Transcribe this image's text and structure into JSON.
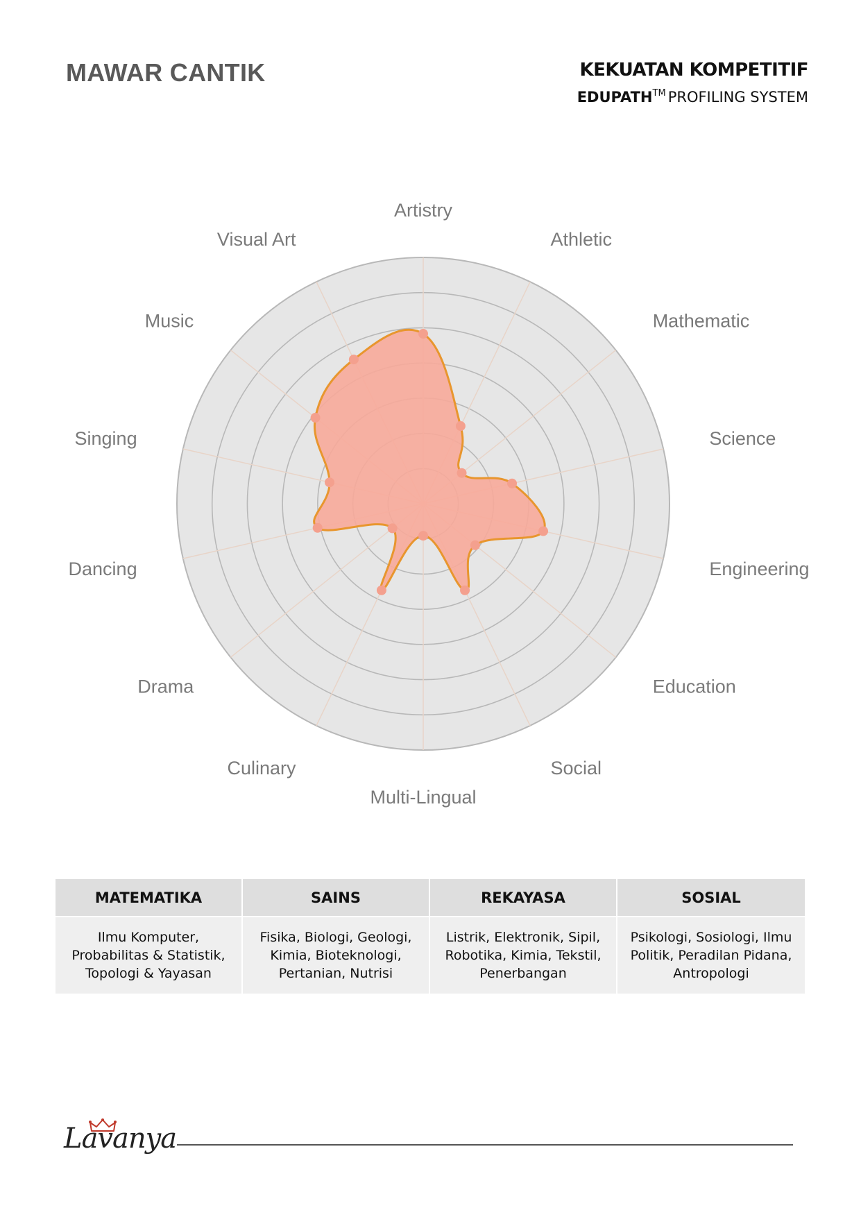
{
  "header": {
    "name": "MAWAR CANTIK",
    "title": "KEKUATAN KOMPETITIF",
    "brand": "EDUPATH",
    "trademark": "TM",
    "subtitle": "PROFILING SYSTEM"
  },
  "chart_data": {
    "type": "radar",
    "categories": [
      "Artistry",
      "Athletic",
      "Mathematic",
      "Science",
      "Engineering",
      "Education",
      "Social",
      "Multi-Lingual",
      "Culinary",
      "Drama",
      "Dancing",
      "Singing",
      "Music",
      "Visual Art"
    ],
    "values": [
      69,
      35,
      20,
      37,
      50,
      27,
      39,
      13,
      39,
      16,
      44,
      39,
      56,
      65
    ],
    "rlim": [
      0,
      100
    ],
    "ring_count": 7,
    "grid": true,
    "legend": "none",
    "colors": {
      "fill": "#f8a898",
      "line": "#e8962e",
      "point": "#f4a08e",
      "background": "#e6e6e6",
      "grid": "#b8b8b8",
      "spokes": "#e8d4c8"
    }
  },
  "table": {
    "columns": [
      {
        "header": "MATEMATIKA",
        "lines": [
          "Ilmu Komputer,",
          "Probabilitas & Statistik,",
          "Topologi & Yayasan"
        ]
      },
      {
        "header": "SAINS",
        "lines": [
          "Fisika, Biologi, Geologi,",
          "Kimia, Bioteknologi,",
          "Pertanian, Nutrisi"
        ]
      },
      {
        "header": "REKAYASA",
        "lines": [
          "Listrik, Elektronik, Sipil,",
          "Robotika, Kimia, Tekstil,",
          "Penerbangan"
        ]
      },
      {
        "header": "SOSIAL",
        "lines": [
          "Psikologi, Sosiologi, Ilmu",
          "Politik, Peradilan Pidana,",
          "Antropologi"
        ]
      }
    ]
  },
  "footer": {
    "logo_text": "Lavanya",
    "logo_icon": "crown-icon"
  }
}
